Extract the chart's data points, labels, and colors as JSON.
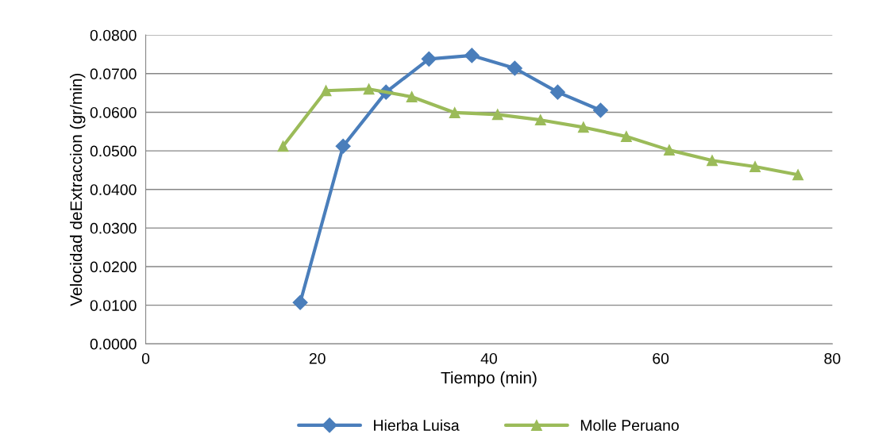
{
  "chart_data": {
    "type": "line",
    "xlabel": "Tiempo (min)",
    "ylabel": "Velocidad deExtraccion (gr/min)",
    "xlim": [
      0,
      80
    ],
    "xticks": [
      0,
      20,
      40,
      60,
      80
    ],
    "ylim": [
      0,
      0.08
    ],
    "yticks": [
      {
        "value": 0,
        "label": "0.0000"
      },
      {
        "value": 0.01,
        "label": "0.0100"
      },
      {
        "value": 0.02,
        "label": "0.0200"
      },
      {
        "value": 0.03,
        "label": "0.0300"
      },
      {
        "value": 0.04,
        "label": "0.0400"
      },
      {
        "value": 0.05,
        "label": "0.0500"
      },
      {
        "value": 0.06,
        "label": "0.0600"
      },
      {
        "value": 0.07,
        "label": "0.0700"
      },
      {
        "value": 0.08,
        "label": "0.0800"
      }
    ],
    "grid": "y",
    "legend": "bottom",
    "line_style": "solid",
    "series": [
      {
        "name": "Hierba Luisa",
        "color": "#4a7ebb",
        "marker": "diamond",
        "x": [
          18,
          23,
          28,
          33,
          38,
          43,
          48,
          53
        ],
        "values": [
          0.0107,
          0.0512,
          0.0652,
          0.0738,
          0.0747,
          0.0714,
          0.0652,
          0.0605
        ]
      },
      {
        "name": "Molle Peruano",
        "color": "#9bbb59",
        "marker": "triangle",
        "x": [
          16,
          21,
          26,
          31,
          36,
          41,
          46,
          51,
          56,
          61,
          66,
          71,
          76
        ],
        "values": [
          0.0512,
          0.0656,
          0.066,
          0.064,
          0.0599,
          0.0594,
          0.058,
          0.0561,
          0.0537,
          0.0502,
          0.0475,
          0.0459,
          0.0438
        ]
      }
    ]
  }
}
